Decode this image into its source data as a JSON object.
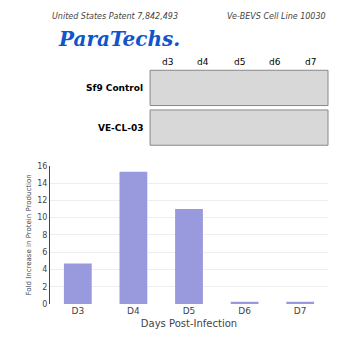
{
  "chart_data": {
    "type": "bar",
    "xlabel": "Days Post-Infection",
    "ylabel": "Fold Increase in Protein Production",
    "categories": [
      "D3",
      "D4",
      "D5",
      "D6",
      "D7"
    ],
    "values": [
      4.7,
      15.3,
      11.0,
      0.25,
      0.25
    ],
    "color": "#9999dd",
    "ylim": [
      0,
      16
    ],
    "yticks": [
      0,
      2,
      4,
      6,
      8,
      10,
      12,
      14,
      16
    ],
    "grid": true,
    "annotations": [
      "United States Patent 7,842,493",
      "Ve-BEVS Cell Line 10030",
      "ParaTechs.",
      "d3",
      "d4",
      "d5",
      "d6",
      "d7",
      "Sf9 Control",
      "VE-CL-03"
    ]
  }
}
